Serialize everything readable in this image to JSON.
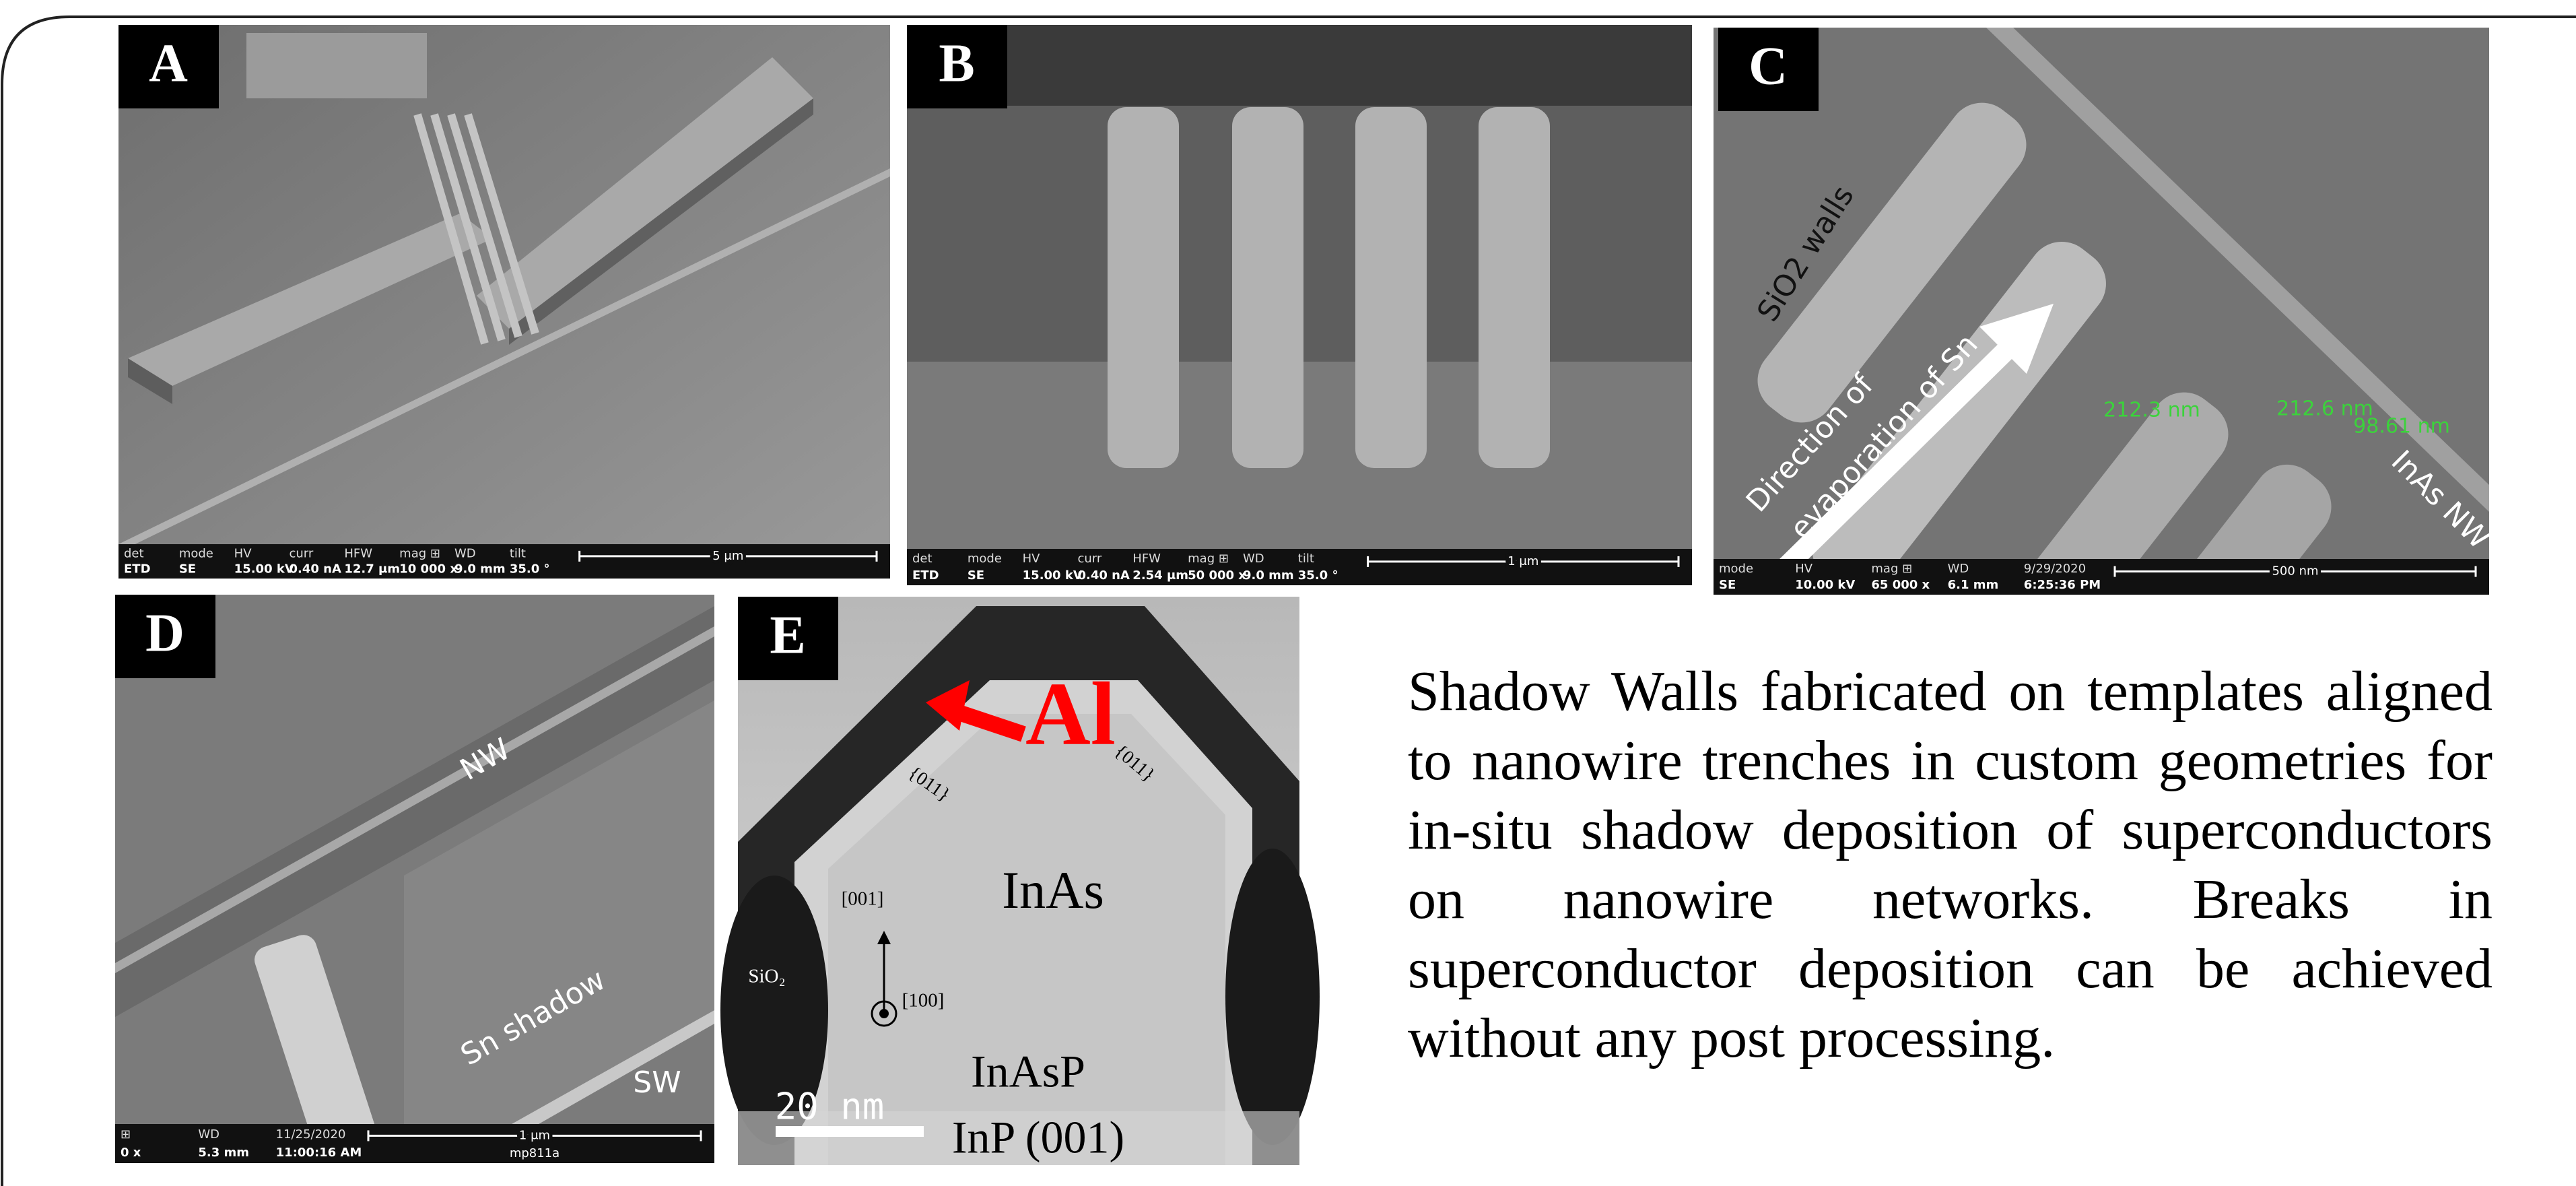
{
  "panels": [
    {
      "label": "A",
      "info_bar": {
        "headers": [
          "det",
          "mode",
          "HV",
          "curr",
          "HFW",
          "mag ⊞",
          "WD",
          "tilt"
        ],
        "values": [
          "ETD",
          "SE",
          "15.00 kV",
          "0.40 nA",
          "12.7 μm",
          "10 000 x",
          "9.0 mm",
          "35.0 °"
        ]
      },
      "scale_bar": "5 μm"
    },
    {
      "label": "B",
      "info_bar": {
        "headers": [
          "det",
          "mode",
          "HV",
          "curr",
          "HFW",
          "mag ⊞",
          "WD",
          "tilt"
        ],
        "values": [
          "ETD",
          "SE",
          "15.00 kV",
          "0.40 nA",
          "2.54 μm",
          "50 000 x",
          "9.0 mm",
          "35.0 °"
        ]
      },
      "scale_bar": "1 μm"
    },
    {
      "label": "C",
      "annotations": [
        "SiO2 walls",
        "Direction of",
        "evaporation of Sn",
        "212.3 nm",
        "212.6 nm",
        "98.61 nm",
        "InAs NW"
      ],
      "info_bar": {
        "headers": [
          "mode",
          "HV",
          "mag ⊞",
          "WD",
          "9/29/2020"
        ],
        "values": [
          "SE",
          "10.00 kV",
          "65 000 x",
          "6.1 mm",
          "6:25:36 PM"
        ]
      },
      "scale_bar": "500 nm"
    },
    {
      "label": "D",
      "annotations": [
        "NW",
        "Sn shadow",
        "SW"
      ],
      "info_bar": {
        "headers": [
          "⊞",
          "WD",
          "11/25/2020"
        ],
        "values": [
          "0 x",
          "5.3 mm",
          "11:00:16 AM"
        ]
      },
      "scale_bar": "1 μm",
      "sample_id": "mp811a"
    },
    {
      "label": "E",
      "annotations": [
        "Al",
        "{011}",
        "{011}",
        "InAs",
        "[001]",
        "[100]",
        "SiO₂",
        "InAsP",
        "InP (001)"
      ],
      "scale_bar": "20 nm"
    }
  ],
  "caption": "Shadow Walls fabricated on templates aligned to nanowire trenches in custom geometries for in-situ shadow deposition of superconductors on nanowire networks. Breaks in superconductor deposition can be achieved without any post processing."
}
